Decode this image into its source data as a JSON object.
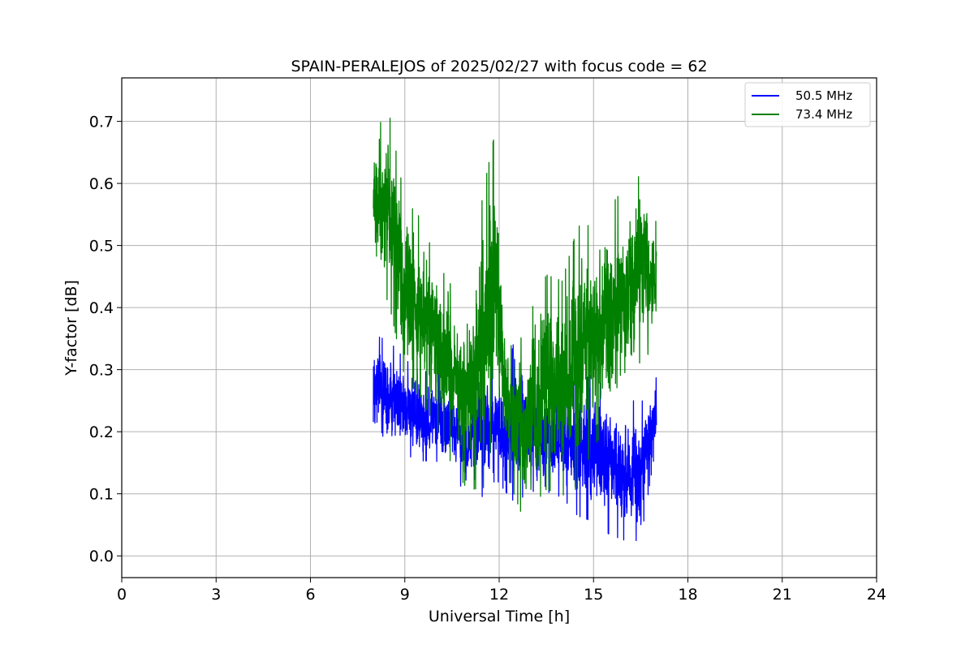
{
  "chart_data": {
    "type": "line",
    "title": "SPAIN-PERALEJOS of 2025/02/27 with focus code = 62",
    "xlabel": "Universal Time [h]",
    "ylabel": "Y-factor [dB]",
    "xlim": [
      0,
      24
    ],
    "ylim": [
      -0.035,
      0.77
    ],
    "xticks": [
      0,
      3,
      6,
      9,
      12,
      15,
      18,
      21,
      24
    ],
    "yticks": [
      0.0,
      0.1,
      0.2,
      0.3,
      0.4,
      0.5,
      0.6,
      0.7
    ],
    "ytick_labels": [
      "0.0",
      "0.1",
      "0.2",
      "0.3",
      "0.4",
      "0.5",
      "0.6",
      "0.7"
    ],
    "grid": true,
    "legend_position": "top-right",
    "series": [
      {
        "name": "50.5 MHz",
        "color": "#0000ff",
        "x_start": 8.0,
        "x_end": 17.0,
        "envelope": {
          "x": [
            8.0,
            8.5,
            9.0,
            9.5,
            10.0,
            10.5,
            11.0,
            11.5,
            11.9,
            12.2,
            12.5,
            13.0,
            13.5,
            14.0,
            14.5,
            15.0,
            15.5,
            16.0,
            16.5,
            17.0
          ],
          "lower": [
            0.19,
            0.15,
            0.16,
            0.15,
            0.15,
            0.12,
            0.1,
            0.09,
            0.12,
            0.1,
            0.08,
            0.1,
            0.1,
            0.09,
            0.06,
            0.05,
            0.03,
            0.02,
            0.02,
            0.18
          ],
          "upper": [
            0.36,
            0.35,
            0.32,
            0.3,
            0.3,
            0.28,
            0.27,
            0.33,
            0.31,
            0.28,
            0.36,
            0.3,
            0.28,
            0.3,
            0.28,
            0.3,
            0.26,
            0.26,
            0.25,
            0.29
          ]
        }
      },
      {
        "name": "73.4 MHz",
        "color": "#008000",
        "x_start": 8.0,
        "x_end": 17.0,
        "envelope": {
          "x": [
            8.0,
            8.5,
            9.0,
            9.5,
            10.0,
            10.5,
            11.0,
            11.5,
            11.9,
            12.2,
            12.5,
            12.8,
            13.0,
            13.5,
            14.0,
            14.5,
            15.0,
            15.5,
            16.0,
            16.5,
            17.0
          ],
          "lower": [
            0.45,
            0.4,
            0.28,
            0.25,
            0.2,
            0.14,
            0.1,
            0.1,
            0.2,
            0.13,
            0.09,
            0.05,
            0.07,
            0.1,
            0.09,
            0.1,
            0.17,
            0.2,
            0.23,
            0.31,
            0.33
          ],
          "upper": [
            0.69,
            0.72,
            0.58,
            0.55,
            0.48,
            0.44,
            0.4,
            0.6,
            0.7,
            0.34,
            0.37,
            0.35,
            0.4,
            0.46,
            0.45,
            0.54,
            0.54,
            0.57,
            0.6,
            0.62,
            0.54
          ]
        }
      }
    ]
  }
}
